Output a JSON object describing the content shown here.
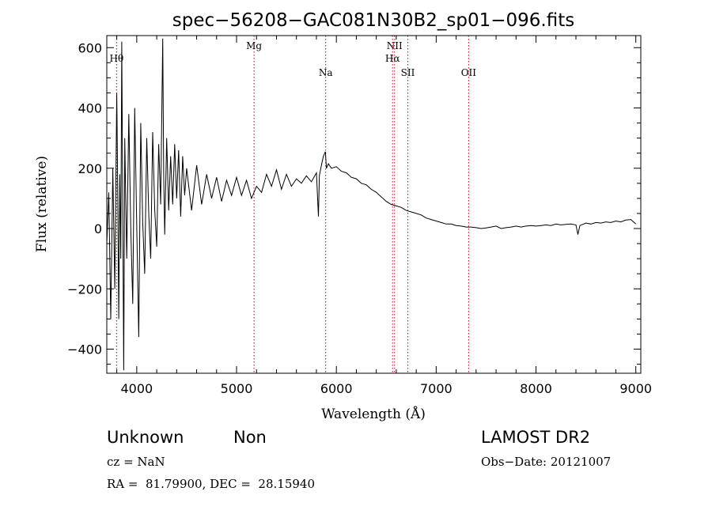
{
  "chart_data": {
    "type": "line",
    "title": "spec−56208−GAC081N30B2_sp01−096.fits",
    "xlabel": "Wavelength (Å)",
    "ylabel": "Flux (relative)",
    "xlim": [
      3700,
      9050
    ],
    "ylim": [
      -480,
      640
    ],
    "xticks": [
      4000,
      5000,
      6000,
      7000,
      8000,
      9000
    ],
    "xtick_labels": [
      "4000",
      "5000",
      "6000",
      "7000",
      "8000",
      "9000"
    ],
    "yticks": [
      -400,
      -200,
      0,
      200,
      400,
      600
    ],
    "ytick_labels": [
      "−400",
      "−200",
      "0",
      "200",
      "400",
      "600"
    ],
    "grid": false,
    "line_color": "#000000",
    "marker_color": "#cc0000",
    "series": [
      {
        "values": [
          [
            3700,
            -50
          ],
          [
            3720,
            120
          ],
          [
            3740,
            -300
          ],
          [
            3760,
            200
          ],
          [
            3780,
            -200
          ],
          [
            3800,
            450
          ],
          [
            3810,
            100
          ],
          [
            3820,
            -300
          ],
          [
            3830,
            180
          ],
          [
            3840,
            -100
          ],
          [
            3850,
            620
          ],
          [
            3860,
            50
          ],
          [
            3870,
            -470
          ],
          [
            3880,
            300
          ],
          [
            3900,
            -100
          ],
          [
            3920,
            380
          ],
          [
            3940,
            0
          ],
          [
            3960,
            -250
          ],
          [
            3980,
            400
          ],
          [
            4000,
            0
          ],
          [
            4020,
            -360
          ],
          [
            4040,
            350
          ],
          [
            4060,
            20
          ],
          [
            4080,
            -150
          ],
          [
            4100,
            300
          ],
          [
            4120,
            50
          ],
          [
            4140,
            -100
          ],
          [
            4160,
            320
          ],
          [
            4180,
            60
          ],
          [
            4200,
            -60
          ],
          [
            4220,
            280
          ],
          [
            4240,
            80
          ],
          [
            4260,
            630
          ],
          [
            4270,
            180
          ],
          [
            4280,
            -20
          ],
          [
            4300,
            300
          ],
          [
            4320,
            60
          ],
          [
            4340,
            240
          ],
          [
            4360,
            80
          ],
          [
            4380,
            280
          ],
          [
            4400,
            100
          ],
          [
            4420,
            260
          ],
          [
            4440,
            40
          ],
          [
            4460,
            240
          ],
          [
            4480,
            110
          ],
          [
            4500,
            200
          ],
          [
            4550,
            60
          ],
          [
            4600,
            210
          ],
          [
            4650,
            80
          ],
          [
            4700,
            180
          ],
          [
            4750,
            100
          ],
          [
            4800,
            170
          ],
          [
            4850,
            90
          ],
          [
            4900,
            160
          ],
          [
            4950,
            110
          ],
          [
            5000,
            170
          ],
          [
            5050,
            110
          ],
          [
            5100,
            160
          ],
          [
            5150,
            100
          ],
          [
            5200,
            140
          ],
          [
            5250,
            120
          ],
          [
            5300,
            180
          ],
          [
            5350,
            140
          ],
          [
            5400,
            195
          ],
          [
            5450,
            130
          ],
          [
            5500,
            180
          ],
          [
            5550,
            140
          ],
          [
            5600,
            165
          ],
          [
            5650,
            150
          ],
          [
            5700,
            175
          ],
          [
            5750,
            155
          ],
          [
            5800,
            185
          ],
          [
            5820,
            40
          ],
          [
            5830,
            175
          ],
          [
            5850,
            210
          ],
          [
            5870,
            240
          ],
          [
            5890,
            255
          ],
          [
            5900,
            200
          ],
          [
            5920,
            215
          ],
          [
            5950,
            200
          ],
          [
            6000,
            205
          ],
          [
            6050,
            190
          ],
          [
            6100,
            185
          ],
          [
            6150,
            170
          ],
          [
            6200,
            165
          ],
          [
            6250,
            150
          ],
          [
            6300,
            145
          ],
          [
            6350,
            130
          ],
          [
            6400,
            120
          ],
          [
            6450,
            105
          ],
          [
            6500,
            90
          ],
          [
            6550,
            80
          ],
          [
            6600,
            75
          ],
          [
            6650,
            70
          ],
          [
            6700,
            60
          ],
          [
            6750,
            55
          ],
          [
            6800,
            50
          ],
          [
            6850,
            45
          ],
          [
            6900,
            35
          ],
          [
            6950,
            30
          ],
          [
            7000,
            25
          ],
          [
            7050,
            20
          ],
          [
            7100,
            15
          ],
          [
            7150,
            15
          ],
          [
            7200,
            10
          ],
          [
            7250,
            8
          ],
          [
            7300,
            5
          ],
          [
            7350,
            5
          ],
          [
            7400,
            3
          ],
          [
            7450,
            0
          ],
          [
            7500,
            2
          ],
          [
            7550,
            5
          ],
          [
            7600,
            8
          ],
          [
            7650,
            0
          ],
          [
            7700,
            3
          ],
          [
            7750,
            5
          ],
          [
            7800,
            8
          ],
          [
            7850,
            5
          ],
          [
            7900,
            8
          ],
          [
            7950,
            10
          ],
          [
            8000,
            8
          ],
          [
            8050,
            10
          ],
          [
            8100,
            12
          ],
          [
            8150,
            10
          ],
          [
            8200,
            15
          ],
          [
            8250,
            12
          ],
          [
            8300,
            14
          ],
          [
            8350,
            15
          ],
          [
            8400,
            12
          ],
          [
            8420,
            -20
          ],
          [
            8440,
            10
          ],
          [
            8500,
            18
          ],
          [
            8550,
            15
          ],
          [
            8600,
            20
          ],
          [
            8650,
            18
          ],
          [
            8700,
            22
          ],
          [
            8750,
            20
          ],
          [
            8800,
            25
          ],
          [
            8850,
            22
          ],
          [
            8900,
            28
          ],
          [
            8950,
            30
          ],
          [
            9000,
            15
          ]
        ]
      }
    ],
    "lines": [
      {
        "label": "Hθ",
        "x": 3798
      },
      {
        "label": "Mg",
        "x": 5175
      },
      {
        "label": "Na",
        "x": 5893
      },
      {
        "label": "NII",
        "x": 6583
      },
      {
        "label": "Hα",
        "x": 6563
      },
      {
        "label": "SII",
        "x": 6716
      },
      {
        "label": "OII",
        "x": 7325
      }
    ]
  },
  "info": {
    "class": "Unknown",
    "subclass": "Non",
    "survey": "LAMOST DR2",
    "cz": "cz = NaN",
    "obs_date": "Obs−Date: 20121007",
    "coords": "RA =  81.79900, DEC =  28.15940"
  }
}
